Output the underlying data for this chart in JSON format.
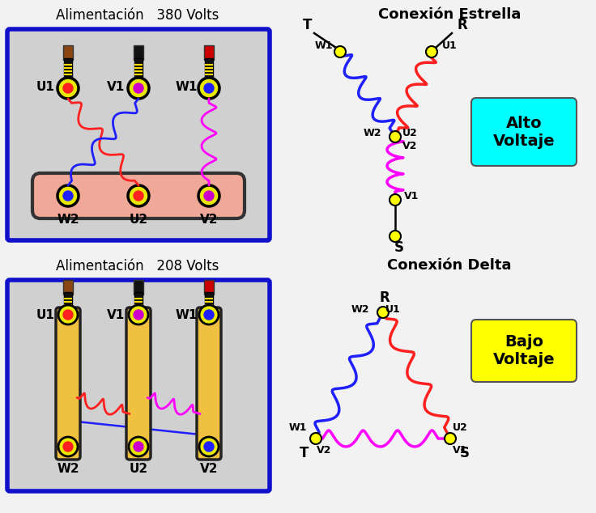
{
  "bg_color": "#f2f2f2",
  "title_380": "Alimentación   380 Volts",
  "title_208": "Alimentación   208 Volts",
  "title_estrella": "Conexión Estrella",
  "title_delta": "Conexión Delta",
  "alto_voltaje": "Alto\nVoltaje",
  "bajo_voltaje": "Bajo\nVoltaje",
  "alto_color": "#00ffff",
  "bajo_color": "#ffff00",
  "coil_red": "#ff2020",
  "coil_blue": "#2020ff",
  "coil_magenta": "#ff00ff",
  "terminal_yellow": "#e8e800",
  "box_border": "#1010cc",
  "box_fill": "#d0d0d0",
  "bus_fill": "#f0a898",
  "wire_brown": "#8B4513",
  "wire_black": "#111111",
  "wire_red": "#cc0000"
}
